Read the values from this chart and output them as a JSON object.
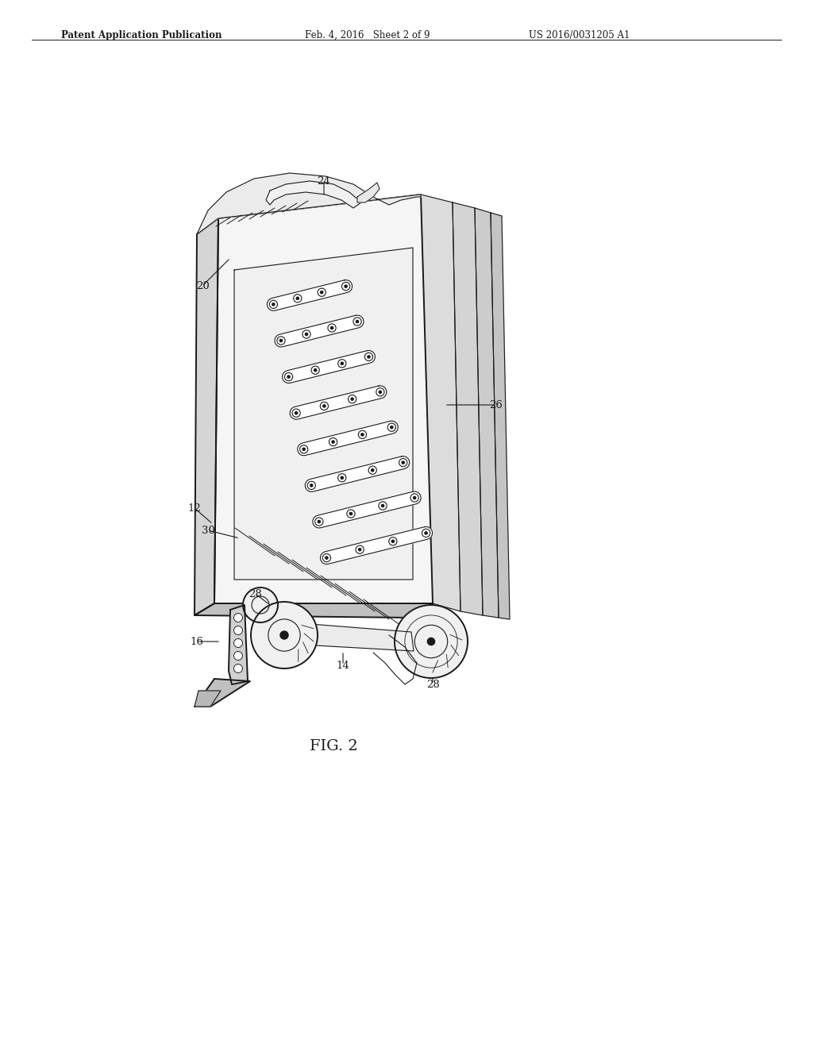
{
  "header_left": "Patent Application Publication",
  "header_center": "Feb. 4, 2016   Sheet 2 of 9",
  "header_right": "US 2016/0031205 A1",
  "figure_label": "FIG. 2",
  "bg_color": "#ffffff",
  "line_color": "#1a1a1a"
}
